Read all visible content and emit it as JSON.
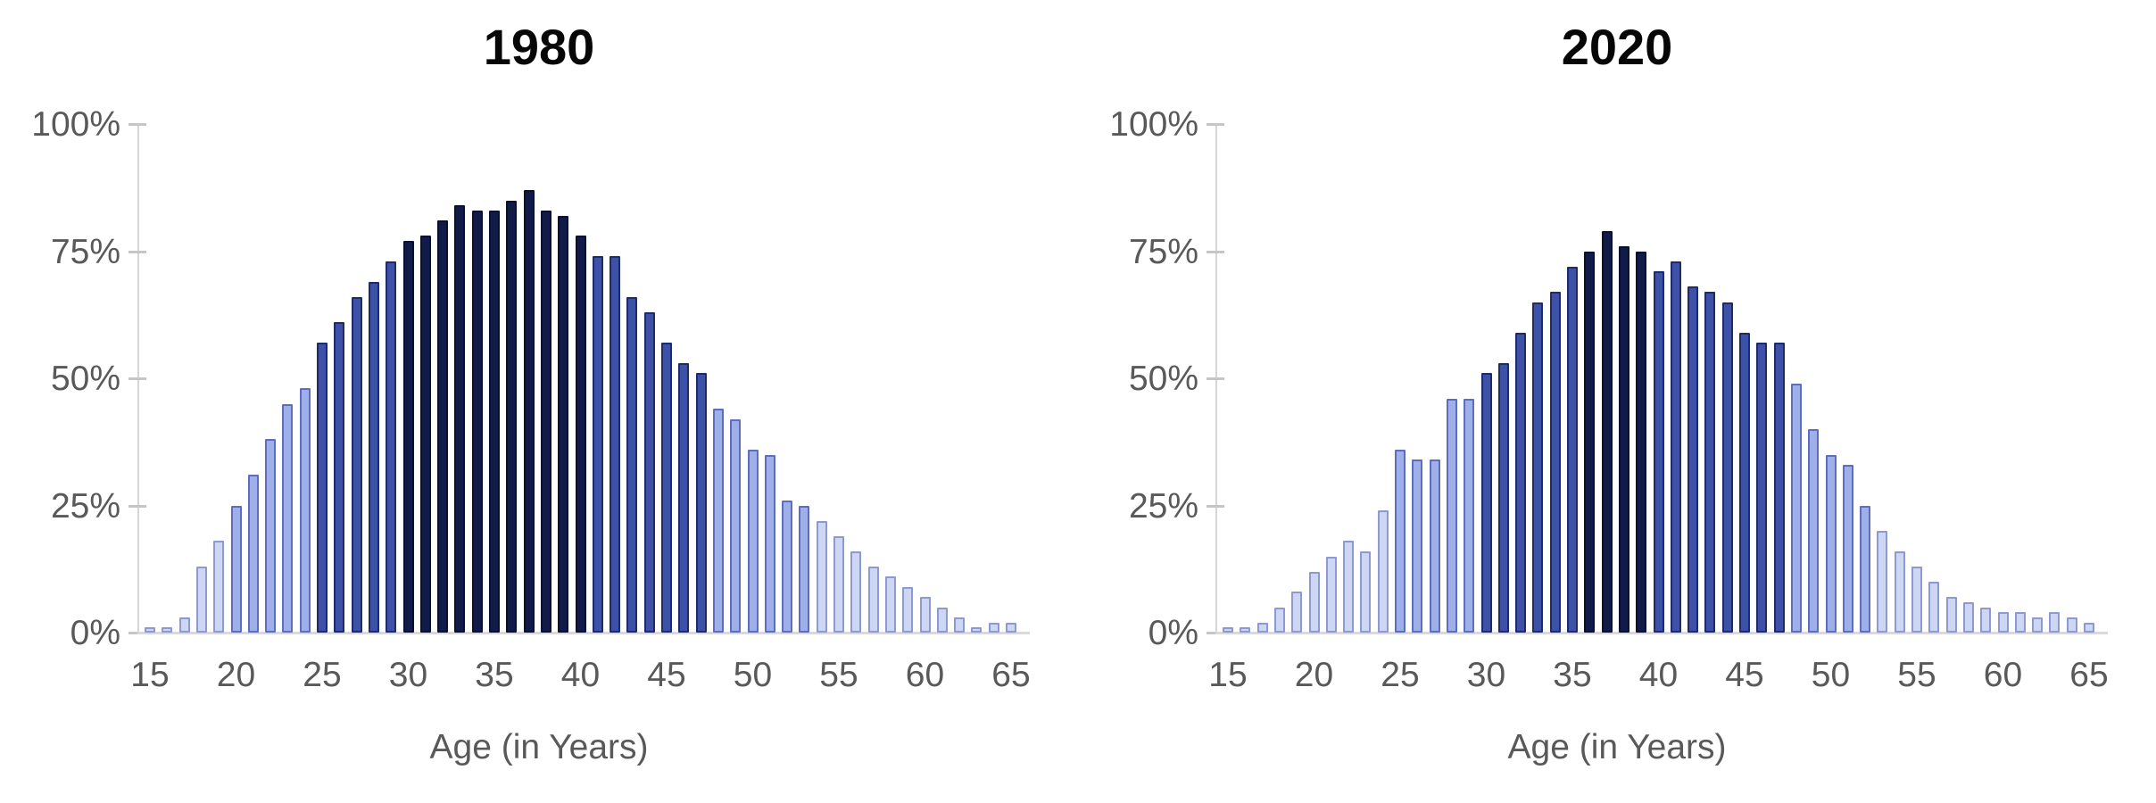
{
  "figure": {
    "background": "#ffffff",
    "kind": "side-by-side histograms of a percentage by age"
  },
  "chart_data": {
    "type": "bar",
    "legend": "none",
    "grid": "off",
    "ylim": [
      0,
      100
    ],
    "y_tick_labels": [
      "100%",
      "75%",
      "50%",
      "25%",
      "0%"
    ],
    "y_tick_values": [
      100,
      75,
      50,
      25,
      0
    ],
    "x_tick_labels": [
      "15",
      "20",
      "25",
      "30",
      "35",
      "40",
      "45",
      "50",
      "55",
      "60",
      "65"
    ],
    "xlabel": "Age (in Years)",
    "ages": [
      15,
      16,
      17,
      18,
      19,
      20,
      21,
      22,
      23,
      24,
      25,
      26,
      27,
      28,
      29,
      30,
      31,
      32,
      33,
      34,
      35,
      36,
      37,
      38,
      39,
      40,
      41,
      42,
      43,
      44,
      45,
      46,
      47,
      48,
      49,
      50,
      51,
      52,
      53,
      54,
      55,
      56,
      57,
      58,
      59,
      60,
      61,
      62,
      63,
      64,
      65
    ],
    "color_coding": {
      "description": "bar color encodes value bucket",
      "thresholds": [
        25,
        50,
        74.5
      ],
      "fills": [
        "#cdd6f2",
        "#9fafe9",
        "#3c51a7",
        "#111b4a"
      ],
      "borders": [
        "#8d9ad1",
        "#5d6ec1",
        "#1e2b6b",
        "#0a112f"
      ]
    },
    "charts": [
      {
        "title": "1980",
        "xlabel": "Age (in Years)",
        "values": [
          1,
          1,
          3,
          13,
          18,
          25,
          31,
          38,
          45,
          48,
          57,
          61,
          66,
          69,
          73,
          77,
          78,
          81,
          84,
          83,
          83,
          85,
          87,
          83,
          82,
          78,
          74,
          74,
          66,
          63,
          57,
          53,
          51,
          44,
          42,
          36,
          35,
          26,
          25,
          22,
          19,
          16,
          13,
          11,
          9,
          7,
          5,
          3,
          1,
          2,
          2
        ]
      },
      {
        "title": "2020",
        "xlabel": "Age (in Years)",
        "values": [
          1,
          1,
          2,
          5,
          8,
          12,
          15,
          18,
          16,
          24,
          36,
          34,
          34,
          46,
          46,
          51,
          53,
          59,
          65,
          67,
          72,
          75,
          79,
          76,
          75,
          71,
          73,
          68,
          67,
          65,
          59,
          57,
          57,
          49,
          40,
          35,
          33,
          25,
          20,
          16,
          13,
          10,
          7,
          6,
          5,
          4,
          4,
          3,
          4,
          3,
          2
        ]
      }
    ]
  }
}
